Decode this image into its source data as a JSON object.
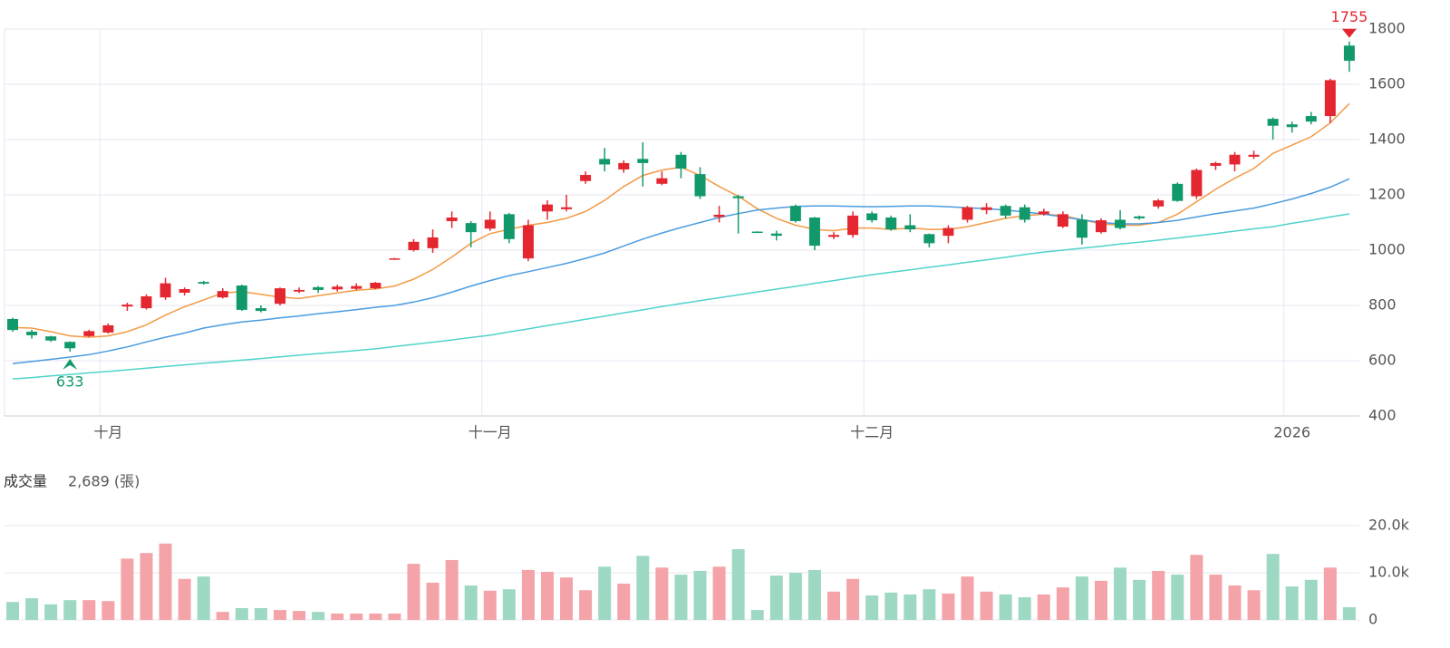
{
  "chart_data": [
    {
      "type": "candlestick",
      "categories": [
        null,
        null,
        null,
        null,
        null,
        "十月",
        null,
        null,
        null,
        null,
        null,
        null,
        null,
        null,
        null,
        null,
        null,
        null,
        null,
        null,
        null,
        null,
        null,
        null,
        null,
        "十一月",
        null,
        null,
        null,
        null,
        null,
        null,
        null,
        null,
        null,
        null,
        null,
        null,
        null,
        null,
        null,
        null,
        null,
        null,
        null,
        "十二月",
        null,
        null,
        null,
        null,
        null,
        null,
        null,
        null,
        null,
        null,
        null,
        null,
        null,
        null,
        null,
        null,
        null,
        null,
        null,
        null,
        null,
        "2026",
        null,
        null,
        null
      ],
      "open": [
        751,
        705,
        688,
        668,
        689,
        702,
        796,
        790,
        829,
        846,
        885,
        829,
        872,
        790,
        806,
        850,
        866,
        858,
        860,
        862,
        968,
        1000,
        1007,
        1105,
        1098,
        1078,
        1130,
        970,
        1140,
        1148,
        1250,
        1330,
        1292,
        1330,
        1240,
        1345,
        1275,
        1120,
        1195,
        1067,
        1060,
        1160,
        1118,
        1048,
        1055,
        1133,
        1118,
        1090,
        1058,
        1052,
        1110,
        1145,
        1160,
        1155,
        1130,
        1085,
        1110,
        1065,
        1110,
        1122,
        1158,
        1240,
        1195,
        1305,
        1310,
        1338,
        1475,
        1455,
        1485,
        1485,
        1740
      ],
      "high": [
        755,
        712,
        690,
        670,
        712,
        735,
        810,
        840,
        900,
        865,
        889,
        862,
        875,
        800,
        865,
        865,
        870,
        875,
        880,
        885,
        972,
        1040,
        1075,
        1140,
        1105,
        1140,
        1135,
        1110,
        1180,
        1200,
        1285,
        1370,
        1325,
        1390,
        1285,
        1355,
        1300,
        1160,
        1200,
        1068,
        1070,
        1165,
        1120,
        1065,
        1140,
        1140,
        1125,
        1130,
        1060,
        1090,
        1160,
        1170,
        1165,
        1165,
        1150,
        1140,
        1130,
        1115,
        1145,
        1125,
        1185,
        1245,
        1295,
        1320,
        1355,
        1360,
        1480,
        1465,
        1500,
        1620,
        1755
      ],
      "low": [
        705,
        680,
        668,
        633,
        686,
        698,
        780,
        785,
        820,
        836,
        875,
        825,
        780,
        775,
        800,
        845,
        845,
        850,
        855,
        858,
        966,
        995,
        990,
        1080,
        1010,
        1070,
        1025,
        960,
        1110,
        1140,
        1240,
        1285,
        1280,
        1230,
        1235,
        1260,
        1185,
        1100,
        1060,
        1064,
        1035,
        1100,
        1000,
        1040,
        1045,
        1100,
        1070,
        1065,
        1010,
        1025,
        1100,
        1130,
        1115,
        1100,
        1125,
        1080,
        1020,
        1060,
        1075,
        1110,
        1150,
        1175,
        1185,
        1290,
        1285,
        1330,
        1400,
        1425,
        1455,
        1460,
        1645
      ],
      "close": [
        711,
        692,
        673,
        645,
        707,
        728,
        803,
        833,
        880,
        859,
        879,
        852,
        784,
        780,
        862,
        856,
        856,
        868,
        870,
        882,
        970,
        1030,
        1046,
        1118,
        1065,
        1110,
        1040,
        1090,
        1165,
        1155,
        1272,
        1310,
        1315,
        1315,
        1260,
        1295,
        1195,
        1128,
        1188,
        1065,
        1052,
        1105,
        1016,
        1055,
        1125,
        1108,
        1075,
        1075,
        1025,
        1080,
        1155,
        1155,
        1125,
        1110,
        1140,
        1130,
        1045,
        1108,
        1080,
        1115,
        1180,
        1178,
        1290,
        1315,
        1345,
        1345,
        1450,
        1445,
        1465,
        1615,
        1685
      ],
      "up_color": "#e3262f",
      "down_color": "#12996b",
      "series": [
        {
          "color": "#f39a45",
          "values": [
            720,
            718,
            705,
            690,
            685,
            690,
            705,
            730,
            765,
            795,
            820,
            845,
            850,
            840,
            830,
            825,
            835,
            845,
            855,
            860,
            870,
            895,
            930,
            975,
            1025,
            1060,
            1075,
            1090,
            1100,
            1115,
            1140,
            1180,
            1230,
            1270,
            1290,
            1300,
            1270,
            1230,
            1195,
            1150,
            1115,
            1090,
            1075,
            1070,
            1080,
            1080,
            1075,
            1080,
            1075,
            1075,
            1085,
            1100,
            1115,
            1125,
            1130,
            1125,
            1110,
            1095,
            1090,
            1090,
            1100,
            1130,
            1175,
            1220,
            1260,
            1295,
            1350,
            1380,
            1410,
            1460,
            1530
          ]
        },
        {
          "color": "#4a9be0",
          "values": [
            590,
            597,
            605,
            613,
            622,
            635,
            650,
            668,
            685,
            700,
            718,
            730,
            740,
            747,
            755,
            762,
            770,
            777,
            785,
            793,
            800,
            812,
            828,
            848,
            870,
            890,
            908,
            922,
            937,
            952,
            970,
            990,
            1015,
            1040,
            1062,
            1082,
            1100,
            1118,
            1132,
            1145,
            1152,
            1158,
            1160,
            1160,
            1158,
            1157,
            1158,
            1160,
            1160,
            1157,
            1153,
            1150,
            1145,
            1138,
            1130,
            1120,
            1110,
            1100,
            1095,
            1095,
            1100,
            1108,
            1120,
            1132,
            1142,
            1152,
            1168,
            1185,
            1205,
            1228,
            1258
          ]
        },
        {
          "color": "#4fd3cb",
          "values": [
            534,
            539,
            545,
            550,
            556,
            561,
            567,
            573,
            579,
            585,
            591,
            596,
            602,
            608,
            614,
            620,
            626,
            631,
            637,
            643,
            651,
            659,
            667,
            675,
            684,
            692,
            704,
            715,
            727,
            738,
            750,
            761,
            773,
            784,
            796,
            807,
            817,
            828,
            838,
            849,
            859,
            869,
            880,
            890,
            901,
            911,
            920,
            929,
            938,
            947,
            956,
            965,
            974,
            984,
            993,
            1000,
            1007,
            1014,
            1022,
            1029,
            1036,
            1044,
            1052,
            1060,
            1069,
            1077,
            1085,
            1097,
            1108,
            1120,
            1131
          ]
        }
      ],
      "ylim": [
        400,
        1800
      ],
      "yticks": [
        400,
        600,
        800,
        1000,
        1200,
        1400,
        1600,
        1800
      ],
      "grid": true,
      "annotations": [
        {
          "value": 1755,
          "label": "1755",
          "color": "#e3262f"
        },
        {
          "value": 633,
          "label": "633",
          "color": "#12996b"
        }
      ]
    },
    {
      "type": "bar",
      "title": "成交量",
      "subtitle": "2,689 (張)",
      "values": [
        3800,
        4600,
        3300,
        4200,
        4200,
        4000,
        13000,
        14200,
        16200,
        8700,
        9200,
        1700,
        2500,
        2500,
        2100,
        1900,
        1700,
        1350,
        1350,
        1350,
        1350,
        11900,
        7900,
        12700,
        7300,
        6200,
        6500,
        10600,
        10200,
        9000,
        6300,
        11300,
        7700,
        13600,
        11100,
        9600,
        10400,
        11300,
        15000,
        2100,
        9400,
        10000,
        10600,
        6000,
        8700,
        5200,
        5800,
        5400,
        6500,
        5600,
        9200,
        6000,
        5400,
        4800,
        5400,
        6900,
        9200,
        8300,
        11100,
        8500,
        10400,
        9600,
        13800,
        9600,
        7300,
        6300,
        14000,
        7100,
        8500,
        11100,
        2689
      ],
      "up_color": "#f4a3a8",
      "down_color": "#9dd9c2",
      "ylim": [
        0,
        20000
      ],
      "yticks": [
        0,
        {
          "value": 10000,
          "label": "10.0k"
        },
        {
          "value": 20000,
          "label": "20.0k"
        }
      ],
      "grid": true
    }
  ]
}
